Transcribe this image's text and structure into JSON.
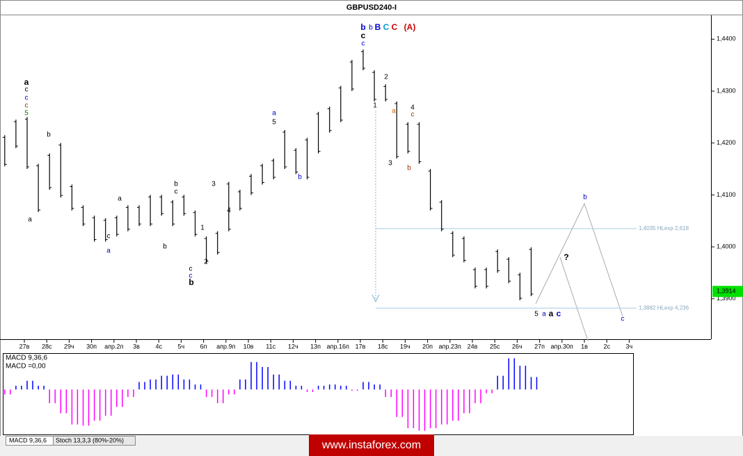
{
  "chart_data": [
    {
      "type": "hilo",
      "title": "GBPUSD240-I",
      "color": "#000000",
      "categories": [
        null,
        null,
        "27в",
        null,
        "28с",
        null,
        "29ч",
        null,
        "30п",
        null,
        "апр.2п",
        null,
        "3в",
        null,
        "4с",
        null,
        "5ч",
        null,
        "6п",
        null,
        "апр.9п",
        null,
        "10в",
        null,
        "11с",
        null,
        "12ч",
        null,
        "13п",
        null,
        "апр.16п",
        null,
        "17в",
        null,
        "18с",
        null,
        "19ч",
        null,
        "20п",
        null,
        "апр.23п",
        null,
        "24в",
        null,
        "25с",
        null,
        "26ч",
        null,
        "27п",
        null,
        "апр.30п",
        null,
        "1в",
        null,
        "2с",
        null,
        "3ч",
        null
      ],
      "high": [
        1.4215,
        1.4245,
        1.425,
        1.416,
        1.418,
        1.42,
        1.412,
        1.408,
        1.406,
        1.4055,
        1.406,
        1.408,
        1.408,
        1.41,
        1.41,
        1.409,
        1.41,
        1.407,
        1.402,
        1.403,
        1.4125,
        1.411,
        1.414,
        1.416,
        1.417,
        1.4225,
        1.419,
        1.421,
        1.426,
        1.427,
        1.431,
        1.436,
        1.438,
        1.434,
        1.4313,
        1.428,
        1.424,
        1.424,
        1.415,
        1.409,
        1.403,
        1.402,
        1.396,
        1.396,
        1.3995,
        1.398,
        1.395,
        1.3999,
        null,
        null,
        null,
        null,
        null,
        null,
        null,
        null,
        null,
        null
      ],
      "low": [
        1.4155,
        1.419,
        1.415,
        1.4067,
        1.411,
        1.4095,
        1.407,
        1.404,
        1.401,
        1.401,
        1.402,
        1.403,
        1.404,
        1.404,
        1.406,
        1.404,
        1.406,
        1.402,
        1.3968,
        1.3985,
        1.403,
        1.407,
        1.41,
        1.412,
        1.413,
        1.415,
        1.414,
        1.413,
        1.418,
        1.422,
        1.424,
        1.43,
        1.434,
        1.428,
        1.428,
        1.417,
        1.418,
        1.416,
        1.407,
        1.403,
        1.398,
        1.397,
        1.392,
        1.392,
        1.395,
        1.393,
        1.3897,
        1.3905,
        null,
        null,
        null,
        null,
        null,
        null,
        null,
        null,
        null,
        null
      ],
      "ylim": [
        1.3822,
        1.4446
      ],
      "yticks": [
        {
          "value": 1.39,
          "label": "1,3900"
        },
        {
          "value": 1.4,
          "label": "1,4000"
        },
        {
          "value": 1.41,
          "label": "1,4100"
        },
        {
          "value": 1.42,
          "label": "1,4200"
        },
        {
          "value": 1.43,
          "label": "1,4300"
        },
        {
          "value": 1.44,
          "label": "1,4400"
        }
      ],
      "levels": [
        {
          "value": 1.4035,
          "label": "1,4035 HLexp 2,618"
        },
        {
          "value": 1.3882,
          "label": "1,3882 HLexp 4,236"
        }
      ],
      "last": {
        "value": 1.3914,
        "label": "1,3914"
      },
      "annotations": [
        {
          "text": "b",
          "color": "#0000cc"
        },
        {
          "text": "c",
          "color": "#000000"
        },
        {
          "text": "c",
          "color": "#0000cc"
        },
        {
          "text": "b",
          "color": "#0000cc"
        },
        {
          "text": "B",
          "color": "#0000cc"
        },
        {
          "text": "C",
          "color": "#0099cc"
        },
        {
          "text": "C",
          "color": "#cc0000"
        },
        {
          "text": "(A)",
          "color": "#cc0000"
        },
        {
          "text": "a",
          "color": "#000000"
        },
        {
          "text": "c",
          "color": "#000000"
        },
        {
          "text": "c",
          "color": "#0000cc"
        },
        {
          "text": "c",
          "color": "#993300"
        },
        {
          "text": "5",
          "color": "#008000"
        },
        {
          "text": "a",
          "color": "#000000"
        },
        {
          "text": "b",
          "color": "#000000"
        },
        {
          "text": "a",
          "color": "#000000"
        },
        {
          "text": "c",
          "color": "#000000"
        },
        {
          "text": "a",
          "color": "#0000cc"
        },
        {
          "text": "b",
          "color": "#000000"
        },
        {
          "text": "b",
          "color": "#000000"
        },
        {
          "text": "c",
          "color": "#000000"
        },
        {
          "text": "3",
          "color": "#000000"
        },
        {
          "text": "4",
          "color": "#000000"
        },
        {
          "text": "1",
          "color": "#000000"
        },
        {
          "text": "2",
          "color": "#000000"
        },
        {
          "text": "c",
          "color": "#000000"
        },
        {
          "text": "c",
          "color": "#0000cc"
        },
        {
          "text": "b",
          "color": "#000000"
        },
        {
          "text": "a",
          "color": "#0000cc"
        },
        {
          "text": "5",
          "color": "#000000"
        },
        {
          "text": "b",
          "color": "#0000cc"
        },
        {
          "text": "1",
          "color": "#000000"
        },
        {
          "text": "2",
          "color": "#000000"
        },
        {
          "text": "3",
          "color": "#000000"
        },
        {
          "text": "a",
          "color": "#cc6600"
        },
        {
          "text": "4",
          "color": "#000000"
        },
        {
          "text": "c",
          "color": "#993300"
        },
        {
          "text": "b",
          "color": "#993300"
        },
        {
          "text": "?",
          "color": "#000000"
        },
        {
          "text": "b",
          "color": "#0000cc"
        },
        {
          "text": "c",
          "color": "#0000cc"
        },
        {
          "text": "5",
          "color": "#000000"
        },
        {
          "text": "a",
          "color": "#0000cc"
        },
        {
          "text": "a",
          "color": "#000000"
        },
        {
          "text": "c",
          "color": "#0000cc"
        }
      ]
    },
    {
      "type": "bar",
      "title": "MACD 9,36,6",
      "subtitle": "MACD =0,00",
      "positive_color": "#0000ff",
      "negative_color": "#ff00ff",
      "values": [
        -0.0004,
        0.0003,
        0.0007,
        0.0003,
        -0.0011,
        -0.0019,
        -0.0028,
        -0.0029,
        -0.0025,
        -0.0021,
        -0.0014,
        -0.0006,
        0.0006,
        0.0008,
        0.0011,
        0.0012,
        0.0008,
        0.0004,
        -0.0006,
        -0.0011,
        -0.0004,
        0.0008,
        0.0022,
        0.0018,
        0.0012,
        0.0007,
        0.0003,
        -0.0002,
        0.0003,
        0.0004,
        0.0003,
        -0.0001,
        0.0006,
        0.0004,
        -0.0006,
        -0.0022,
        -0.0031,
        -0.0033,
        -0.0031,
        -0.0028,
        -0.0025,
        -0.0019,
        -0.0011,
        -0.0003,
        0.0011,
        0.0025,
        0.0019,
        0.001,
        null,
        null,
        null,
        null,
        null,
        null,
        null,
        null,
        null,
        null
      ],
      "ylim": [
        -0.0036,
        0.0028
      ]
    }
  ],
  "tabs": [
    "MACD 9,36,6",
    "Stoch 13,3,3 (80%-20%)"
  ],
  "watermark": "www.instaforex.com"
}
